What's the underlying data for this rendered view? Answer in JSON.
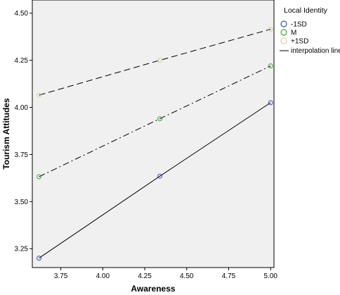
{
  "chart_data": {
    "type": "line",
    "title": "",
    "xlabel": "Awareness",
    "ylabel": "Tourism Attitudes",
    "xlim": [
      3.58,
      5.02
    ],
    "ylim": [
      3.15,
      4.57
    ],
    "xticks": [
      "3.75",
      "4.00",
      "4.25",
      "4.50",
      "4.75",
      "5.00"
    ],
    "yticks": [
      "3.25",
      "3.50",
      "3.75",
      "4.00",
      "4.25",
      "4.50"
    ],
    "grid": false,
    "legend_position": "right",
    "legend_title": "Local Identity",
    "interpolation_label": "interpolation line",
    "series": [
      {
        "name": "-1SD",
        "marker_color": "#3f4fa0",
        "dash": "none",
        "x": [
          3.62,
          4.34,
          5.0
        ],
        "y": [
          3.2,
          3.635,
          4.025
        ]
      },
      {
        "name": "M",
        "marker_color": "#3aa83a",
        "dash": "dashdot",
        "x": [
          3.62,
          4.34,
          5.0
        ],
        "y": [
          3.632,
          3.94,
          4.22
        ]
      },
      {
        "name": "+1SD",
        "marker_color": "#d8cfa6",
        "dash": "dashed",
        "x": [
          3.62,
          4.34,
          5.0
        ],
        "y": [
          4.065,
          4.25,
          4.415
        ]
      }
    ]
  }
}
